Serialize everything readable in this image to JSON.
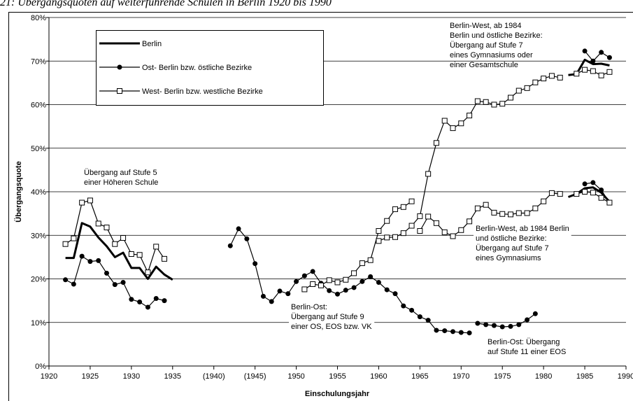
{
  "chart_data": {
    "type": "line",
    "title": "21: Übergangsquoten auf weiterführende Schulen in Berlin 1920 bis 1990",
    "xlabel": "Einschulungsjahr",
    "ylabel": "Übergangsquote",
    "xlim": [
      1920,
      1990
    ],
    "ylim": [
      0,
      80
    ],
    "xticks": [
      1920,
      1925,
      1930,
      1935,
      {
        "value": 1940,
        "label": "(1940)"
      },
      {
        "value": 1945,
        "label": "(1945)"
      },
      1950,
      1955,
      1960,
      1965,
      1970,
      1975,
      1980,
      1985,
      1990
    ],
    "yticks": [
      {
        "value": 0,
        "label": "0%"
      },
      {
        "value": 10,
        "label": "10%"
      },
      {
        "value": 20,
        "label": "20%"
      },
      {
        "value": 30,
        "label": "30%"
      },
      {
        "value": 40,
        "label": "40%"
      },
      {
        "value": 50,
        "label": "50%"
      },
      {
        "value": 60,
        "label": "60%"
      },
      {
        "value": 70,
        "label": "70%"
      },
      {
        "value": 80,
        "label": "80%"
      }
    ],
    "grid": true,
    "series": [
      {
        "name": "Berlin",
        "color": "#000000",
        "marker": "none",
        "x": [
          1922,
          1923,
          1924,
          1925,
          1926,
          1927,
          1928,
          1929,
          1930,
          1931,
          1932,
          1933,
          1934,
          1935,
          null,
          1983,
          1984,
          1985,
          1986,
          1987,
          1988,
          null,
          1983,
          1984,
          1985,
          1986,
          1987,
          1988
        ],
        "values": [
          24.8,
          24.8,
          32.8,
          32.0,
          29.5,
          27.5,
          25.0,
          26.0,
          22.5,
          22.5,
          20.0,
          22.8,
          21.0,
          19.8,
          null,
          66.8,
          67.0,
          70.3,
          69.3,
          69.4,
          69.0,
          null,
          38.8,
          39.5,
          40.8,
          41.0,
          39.8,
          37.7
        ]
      },
      {
        "name": "Ost- Berlin bzw. östliche Bezirke",
        "color": "#000000",
        "marker": "circle",
        "x": [
          1922,
          1923,
          1924,
          1925,
          1926,
          1927,
          1928,
          1929,
          1930,
          1931,
          1932,
          1933,
          1934,
          null,
          1942,
          1943,
          1944,
          1945,
          1946,
          1947,
          1948,
          1949,
          1950,
          1951,
          1952,
          1953,
          1954,
          1955,
          1956,
          1957,
          1958,
          1959,
          1960,
          1961,
          1962,
          1963,
          1964,
          1965,
          1966,
          1967,
          1968,
          1969,
          1970,
          1971,
          null,
          1972,
          1973,
          1974,
          1975,
          1976,
          1977,
          1978,
          1979,
          null,
          1985,
          1986,
          1987,
          1988,
          null,
          1985,
          1986,
          1987,
          1988
        ],
        "values": [
          19.8,
          18.8,
          25.2,
          24.0,
          24.2,
          21.3,
          18.7,
          19.2,
          15.3,
          14.7,
          13.5,
          15.5,
          15.0,
          null,
          27.6,
          31.5,
          29.2,
          23.5,
          16.0,
          14.8,
          17.2,
          16.6,
          19.4,
          20.7,
          21.7,
          19.0,
          17.3,
          16.5,
          17.4,
          18.0,
          19.4,
          20.5,
          19.2,
          17.5,
          16.6,
          13.8,
          12.8,
          11.3,
          10.5,
          8.2,
          8.1,
          7.9,
          7.7,
          7.6,
          null,
          9.8,
          9.5,
          9.3,
          9.0,
          9.1,
          9.5,
          10.6,
          12.0,
          null,
          72.3,
          70.0,
          72.0,
          70.8,
          null,
          41.8,
          42.1,
          40.4,
          37.5
        ]
      },
      {
        "name": "West- Berlin bzw. westliche Bezirke",
        "color": "#000000",
        "marker": "square",
        "x": [
          1922,
          1923,
          1924,
          1925,
          1926,
          1927,
          1928,
          1929,
          1930,
          1931,
          1932,
          1933,
          1934,
          null,
          1951,
          1952,
          1953,
          1954,
          1955,
          1956,
          1957,
          1958,
          1959,
          1960,
          1961,
          1962,
          1963,
          1964,
          null,
          1960,
          1961,
          1962,
          1963,
          1964,
          1965,
          1966,
          1967,
          1968,
          1969,
          1970,
          1971,
          1972,
          1973,
          1974,
          1975,
          1976,
          1977,
          1978,
          1979,
          1980,
          1981,
          1982,
          null,
          1965,
          1966,
          1967,
          1968,
          1969,
          1970,
          1971,
          1972,
          1973,
          1974,
          1975,
          1976,
          1977,
          1978,
          1979,
          1980,
          1981,
          1982,
          null,
          1984,
          1985,
          1986,
          1987,
          1988,
          null,
          1984,
          1985,
          1986,
          1987,
          1988
        ],
        "values": [
          28.0,
          29.3,
          37.5,
          38.0,
          32.7,
          31.8,
          28.0,
          29.4,
          25.7,
          25.5,
          21.5,
          27.4,
          24.6,
          null,
          17.6,
          18.8,
          18.5,
          19.7,
          19.2,
          19.8,
          21.3,
          23.6,
          24.3,
          31.0,
          33.3,
          36.0,
          36.5,
          37.8,
          null,
          28.7,
          29.5,
          29.6,
          30.5,
          32.2,
          34.4,
          44.1,
          51.2,
          56.3,
          54.6,
          55.7,
          57.5,
          60.8,
          60.6,
          60.0,
          60.2,
          61.6,
          63.2,
          63.8,
          65.1,
          66.0,
          66.6,
          66.2,
          null,
          31.0,
          34.3,
          32.8,
          30.7,
          29.8,
          31.2,
          33.2,
          36.2,
          37.0,
          35.2,
          34.9,
          34.8,
          35.1,
          35.1,
          36.2,
          37.8,
          39.7,
          39.5,
          null,
          67.1,
          68.0,
          67.7,
          66.7,
          67.5,
          null,
          39.5,
          40.0,
          39.8,
          38.6,
          37.5
        ]
      }
    ],
    "annotations": [
      [
        "Berlin-West, ab 1984",
        "Berlin und östliche Bezirke:",
        "Übergang auf Stufe 7",
        "eines Gymnasiums oder",
        "einer Gesamtschule"
      ],
      [
        "Übergang auf Stufe 5",
        "einer Höheren Schule"
      ],
      [
        "Berlin-West, ab 1984 Berlin",
        "und östliche Bezirke:",
        "Übergang auf Stufe 7",
        "eines Gymnasiums"
      ],
      [
        "Berlin-Ost:",
        "Übergang auf Stufe 9",
        "einer OS, EOS bzw. VK"
      ],
      [
        "Berlin-Ost: Übergang",
        "auf Stufe 11 einer EOS"
      ]
    ]
  }
}
